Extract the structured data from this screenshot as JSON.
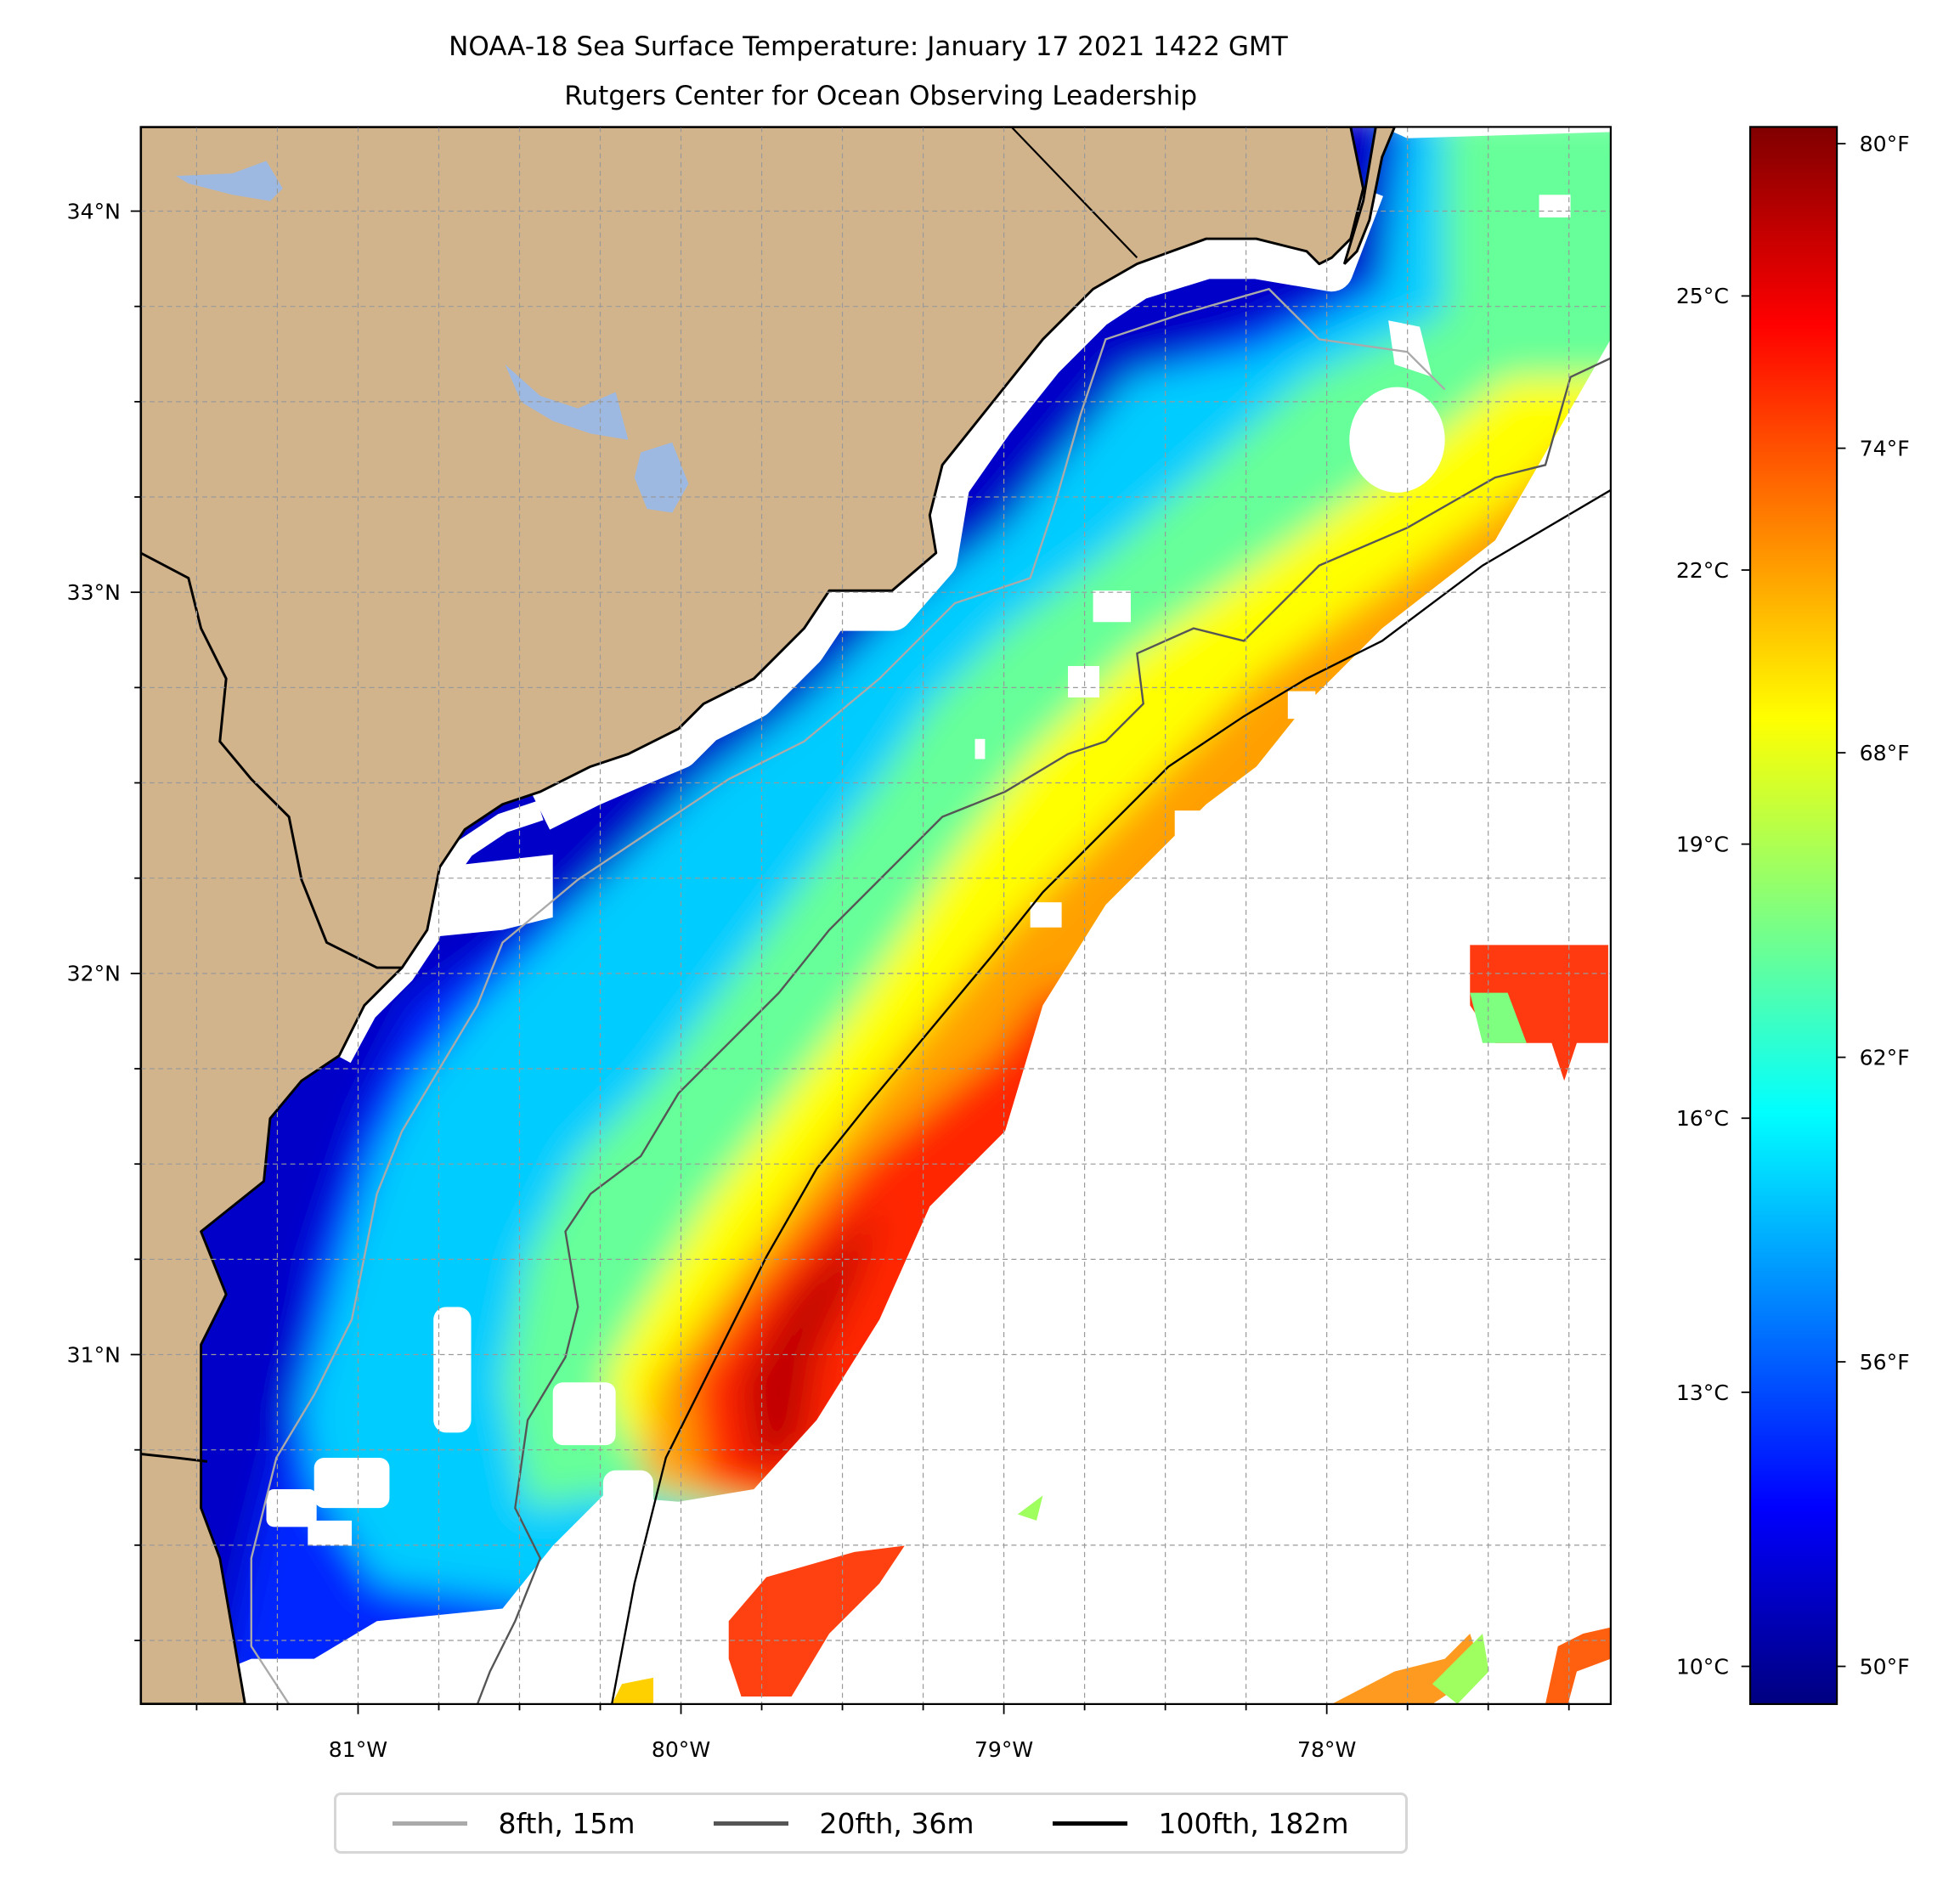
{
  "title": {
    "line1": "NOAA-18 Sea Surface Temperature: January 17 2021 1422 GMT",
    "line2": "Rutgers Center for Ocean Observing Leadership"
  },
  "map": {
    "extent": {
      "lon_min": -81.66,
      "lon_max": -77.11,
      "lat_min": 30.1,
      "lat_max": 34.22
    },
    "lat_ticks": [
      {
        "value": 34,
        "label": "34°N"
      },
      {
        "value": 33,
        "label": "33°N"
      },
      {
        "value": 32,
        "label": "32°N"
      },
      {
        "value": 31,
        "label": "31°N"
      }
    ],
    "lon_ticks": [
      {
        "value": -81,
        "label": "81°W"
      },
      {
        "value": -80,
        "label": "80°W"
      },
      {
        "value": -79,
        "label": "79°W"
      },
      {
        "value": -78,
        "label": "78°W"
      }
    ],
    "grid_step_deg": 0.25,
    "colors": {
      "land": "#D2B48C",
      "lake": "#9DB9E2",
      "no_data": "#FFFFFF"
    }
  },
  "colorbar": {
    "colormap": "jet",
    "range_c": [
      9.6,
      26.84
    ],
    "celsius_ticks": [
      {
        "value": 25,
        "label": "25°C"
      },
      {
        "value": 22,
        "label": "22°C"
      },
      {
        "value": 19,
        "label": "19°C"
      },
      {
        "value": 16,
        "label": "16°C"
      },
      {
        "value": 13,
        "label": "13°C"
      },
      {
        "value": 10,
        "label": "10°C"
      }
    ],
    "fahrenheit_ticks": [
      {
        "value": 80,
        "label": "80°F"
      },
      {
        "value": 74,
        "label": "74°F"
      },
      {
        "value": 68,
        "label": "68°F"
      },
      {
        "value": 62,
        "label": "62°F"
      },
      {
        "value": 56,
        "label": "56°F"
      },
      {
        "value": 50,
        "label": "50°F"
      }
    ]
  },
  "legend": [
    {
      "label": "8fth, 15m",
      "color": "#AAAAAA"
    },
    {
      "label": "20fth, 36m",
      "color": "#555555"
    },
    {
      "label": "100fth, 182m",
      "color": "#000000"
    }
  ]
}
